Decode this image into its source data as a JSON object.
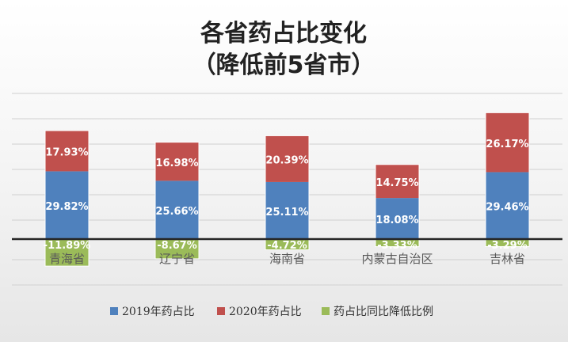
{
  "chart_data": {
    "type": "bar",
    "title": "各省药占比变化",
    "subtitle": "（降低前5省市）",
    "categories": [
      "青海省",
      "辽宁省",
      "海南省",
      "内蒙古自治区",
      "吉林省"
    ],
    "series": [
      {
        "name": "2019年药占比",
        "values": [
          29.82,
          25.66,
          25.11,
          18.08,
          29.46
        ],
        "labels": [
          "29.82%",
          "25.66%",
          "25.11%",
          "18.08%",
          "29.46%"
        ],
        "color": "#4f81bd"
      },
      {
        "name": "2020年药占比",
        "values": [
          17.93,
          16.98,
          20.39,
          14.75,
          26.17
        ],
        "labels": [
          "17.93%",
          "16.98%",
          "20.39%",
          "14.75%",
          "26.17%"
        ],
        "color": "#c0504d"
      },
      {
        "name": "药占比同比降低比例",
        "values": [
          -11.89,
          -8.67,
          -4.72,
          -3.33,
          -3.29
        ],
        "labels": [
          "-11.89%",
          "-8.67%",
          "-4.72%",
          "-3.33%",
          "-3.29%"
        ],
        "color": "#9bbb59"
      }
    ],
    "stacked": true,
    "ylim": [
      -20,
      60
    ],
    "grid": true,
    "legend_position": "bottom"
  }
}
